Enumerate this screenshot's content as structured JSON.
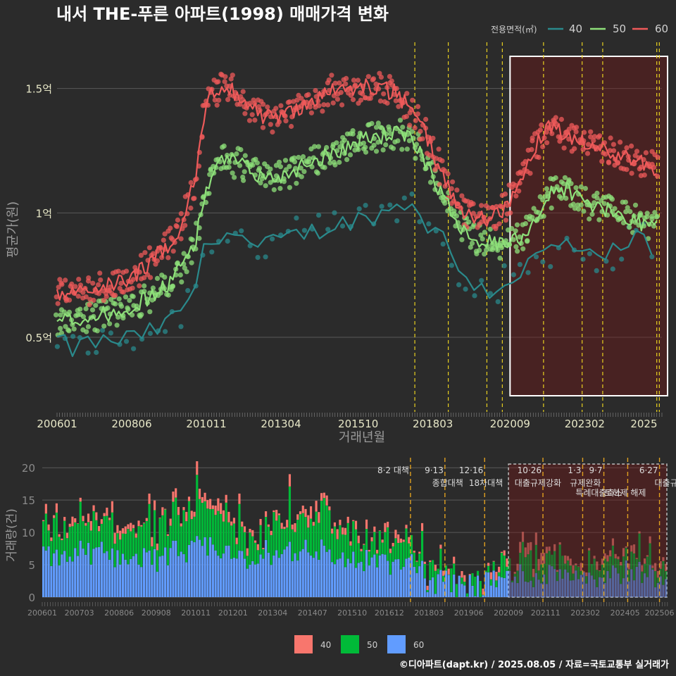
{
  "title": "내서 THE-푸른 아파트(1998) 매매가격 변화",
  "footer": "©디아파트(dapt.kr) / 2025.08.05 / 자료=국토교통부 실거래가",
  "colors": {
    "s40": "#2a8a8c",
    "s50": "#8ee07a",
    "s60": "#ee5a5a",
    "b40": "#f8766d",
    "b50": "#00ba38",
    "b60": "#619cff",
    "event": "#e8d020",
    "event2": "#e0a020",
    "highlight": "#ffffff",
    "bg": "#2b2b2b"
  },
  "chart_data": [
    {
      "type": "line",
      "title": "내서 THE-푸른 아파트(1998) 매매가격 변화",
      "xlabel": "거래년월",
      "ylabel": "평균가(원)",
      "legend_title": "전용면적(㎡)",
      "legend_position": "top-right",
      "x_range": [
        "2006-01",
        "2025-08"
      ],
      "ylim": [
        0.2,
        1.7
      ],
      "y_unit": "억",
      "y_ticks": [
        {
          "v": 0.5,
          "label": "0.5억"
        },
        {
          "v": 1.0,
          "label": "1억"
        },
        {
          "v": 1.5,
          "label": "1.5억"
        }
      ],
      "x_ticks": [
        "200601",
        "200806",
        "201011",
        "201304",
        "201510",
        "201803",
        "202009",
        "202302",
        "2025"
      ],
      "grid": true,
      "highlight_range": [
        "2020-09",
        "2025-08"
      ],
      "event_dates": [
        "2017-08",
        "2018-09",
        "2019-12",
        "2020-06",
        "2021-10",
        "2023-01",
        "2023-09",
        "2025-06",
        "2025-07"
      ],
      "series": [
        {
          "name": "40",
          "x": [
            "2006-01",
            "2006-07",
            "2007-01",
            "2007-07",
            "2008-01",
            "2008-07",
            "2009-01",
            "2009-07",
            "2010-01",
            "2010-07",
            "2010-11",
            "2011-06",
            "2012-01",
            "2012-07",
            "2013-01",
            "2013-07",
            "2014-01",
            "2014-07",
            "2015-01",
            "2015-07",
            "2016-01",
            "2016-07",
            "2017-01",
            "2017-07",
            "2018-01",
            "2018-07",
            "2019-01",
            "2019-07",
            "2020-01",
            "2020-07",
            "2021-01",
            "2021-07",
            "2022-01",
            "2022-07",
            "2023-01",
            "2023-07",
            "2024-01",
            "2024-07",
            "2025-01",
            "2025-06"
          ],
          "y": [
            0.49,
            0.45,
            0.48,
            0.48,
            0.49,
            0.5,
            0.52,
            0.55,
            0.6,
            0.72,
            0.88,
            0.93,
            0.9,
            0.85,
            0.88,
            0.9,
            0.92,
            0.93,
            0.95,
            0.97,
            0.98,
            1.0,
            1.02,
            1.05,
            0.95,
            0.9,
            0.78,
            0.72,
            0.68,
            0.72,
            0.76,
            0.82,
            0.85,
            0.88,
            0.84,
            0.8,
            0.84,
            0.88,
            0.9,
            0.75
          ]
        },
        {
          "name": "50",
          "x": [
            "2006-01",
            "2006-07",
            "2007-01",
            "2007-07",
            "2008-01",
            "2008-07",
            "2009-01",
            "2009-07",
            "2010-01",
            "2010-07",
            "2010-11",
            "2011-06",
            "2012-01",
            "2012-07",
            "2013-01",
            "2013-07",
            "2014-01",
            "2014-07",
            "2015-01",
            "2015-07",
            "2016-01",
            "2016-07",
            "2017-01",
            "2017-07",
            "2018-01",
            "2018-07",
            "2019-01",
            "2019-07",
            "2020-01",
            "2020-07",
            "2021-01",
            "2021-07",
            "2022-01",
            "2022-07",
            "2023-01",
            "2023-07",
            "2024-01",
            "2024-07",
            "2025-01",
            "2025-06"
          ],
          "y": [
            0.56,
            0.57,
            0.58,
            0.59,
            0.61,
            0.63,
            0.66,
            0.7,
            0.78,
            0.9,
            1.1,
            1.22,
            1.19,
            1.15,
            1.14,
            1.16,
            1.2,
            1.22,
            1.25,
            1.27,
            1.3,
            1.31,
            1.32,
            1.29,
            1.2,
            1.06,
            0.96,
            0.9,
            0.88,
            0.87,
            0.9,
            0.98,
            1.08,
            1.1,
            1.05,
            1.02,
            1.0,
            0.98,
            0.96,
            0.95
          ]
        },
        {
          "name": "60",
          "x": [
            "2006-01",
            "2006-07",
            "2007-01",
            "2007-07",
            "2008-01",
            "2008-07",
            "2009-01",
            "2009-07",
            "2010-01",
            "2010-07",
            "2010-11",
            "2011-06",
            "2012-01",
            "2012-07",
            "2013-01",
            "2013-07",
            "2014-01",
            "2014-07",
            "2015-01",
            "2015-07",
            "2016-01",
            "2016-07",
            "2017-01",
            "2017-07",
            "2018-01",
            "2018-07",
            "2019-01",
            "2019-07",
            "2020-01",
            "2020-07",
            "2021-01",
            "2021-07",
            "2022-01",
            "2022-07",
            "2023-01",
            "2023-07",
            "2024-01",
            "2024-07",
            "2025-01",
            "2025-06"
          ],
          "y": [
            0.67,
            0.68,
            0.69,
            0.7,
            0.72,
            0.75,
            0.8,
            0.86,
            0.94,
            1.15,
            1.45,
            1.52,
            1.46,
            1.4,
            1.38,
            1.4,
            1.44,
            1.46,
            1.5,
            1.49,
            1.51,
            1.5,
            1.48,
            1.4,
            1.3,
            1.15,
            1.02,
            0.98,
            0.98,
            1.02,
            1.12,
            1.27,
            1.35,
            1.3,
            1.28,
            1.26,
            1.24,
            1.22,
            1.2,
            1.18
          ]
        }
      ]
    },
    {
      "type": "bar",
      "stacked": true,
      "xlabel": "",
      "ylabel": "거래량(건)",
      "ylim": [
        0,
        21
      ],
      "y_ticks": [
        0,
        5,
        10,
        15,
        20
      ],
      "x_ticks": [
        "200601",
        "200703",
        "200806",
        "200908",
        "201011",
        "201201",
        "201304",
        "201407",
        "201510",
        "201612",
        "201803",
        "201906",
        "202009",
        "202111",
        "202302",
        "202405",
        "202506"
      ],
      "legend_position": "bottom",
      "highlight_range": [
        "2020-09",
        "2025-08"
      ],
      "series_names": [
        "40",
        "50",
        "60"
      ],
      "yearly_avg_60": [
        6.0,
        6.5,
        6.0,
        5.5,
        6.5,
        7.0,
        5.0,
        6.5,
        7.0,
        5.5,
        5.0,
        4.5,
        2.0,
        1.5,
        2.5,
        3.0,
        3.5,
        3.0,
        3.5,
        3.0
      ],
      "yearly_avg_50": [
        3.5,
        4.0,
        4.0,
        4.0,
        4.5,
        5.0,
        3.0,
        4.5,
        5.0,
        4.0,
        3.0,
        2.5,
        1.5,
        1.0,
        1.5,
        2.5,
        2.0,
        1.5,
        2.0,
        1.5
      ],
      "yearly_avg_40": [
        0.8,
        0.8,
        1.0,
        0.8,
        1.2,
        1.2,
        0.8,
        1.0,
        1.2,
        0.8,
        0.8,
        0.6,
        0.4,
        0.4,
        0.6,
        1.2,
        0.6,
        0.6,
        0.8,
        0.6
      ],
      "spikes": [
        {
          "x": "2010-11",
          "y": 21
        },
        {
          "x": "2013-10",
          "y": 19
        },
        {
          "x": "2009-05",
          "y": 16
        },
        {
          "x": "2012-03",
          "y": 16
        }
      ],
      "events": [
        {
          "date": "2017-08",
          "line1": "8·2 대책",
          "line2": ""
        },
        {
          "date": "2018-09",
          "line1": "9·13",
          "line2": "종합대책"
        },
        {
          "date": "2019-12",
          "line1": "12·16",
          "line2": "18차대책"
        },
        {
          "date": "2021-10",
          "line1": "10·26",
          "line2": "대출규제강화"
        },
        {
          "date": "2023-01",
          "line1": "1·3",
          "line2": "규제완화"
        },
        {
          "date": "2023-09",
          "line1": "9·7",
          "line2": "특례대출축소"
        },
        {
          "date": "2024-06",
          "line1": "",
          "line2": "토허제 해제"
        },
        {
          "date": "2025-06",
          "line1": "6·27",
          "line2": "대출규"
        }
      ]
    }
  ]
}
